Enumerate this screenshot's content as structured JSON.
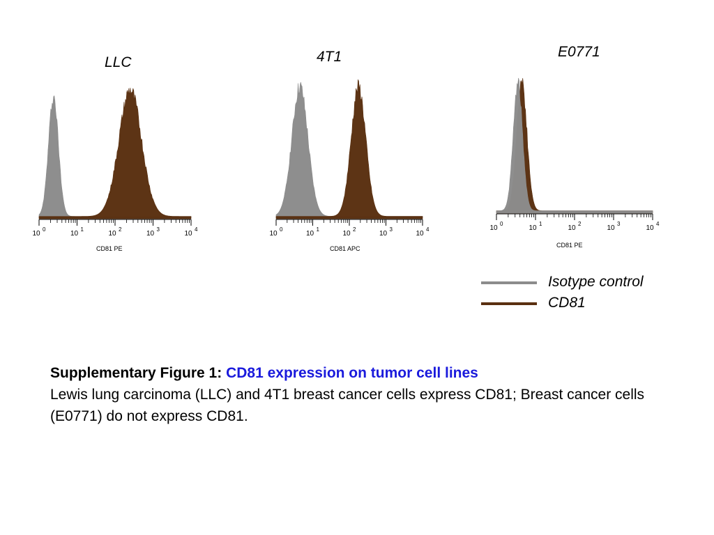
{
  "colors": {
    "isotype": "#8c8c8c",
    "cd81": "#5a3010",
    "caption_title": "#1a1adc",
    "background": "#ffffff"
  },
  "legend": {
    "items": [
      {
        "label": "Isotype control",
        "color": "#8c8c8c"
      },
      {
        "label": "CD81",
        "color": "#5a3010"
      }
    ]
  },
  "caption": {
    "heading": "Supplementary Figure 1:",
    "title": "CD81 expression on tumor cell lines",
    "body": "Lewis lung carcinoma (LLC) and 4T1 breast cancer cells express CD81; Breast cancer cells (E0771) do not express CD81."
  },
  "chart_data": [
    {
      "type": "area",
      "title": "LLC",
      "xlabel": "CD81 PE",
      "x_scale": "log",
      "xlim": [
        1,
        10000
      ],
      "tick_labels": [
        "10^0",
        "10^1",
        "10^2",
        "10^3",
        "10^4"
      ],
      "series": [
        {
          "name": "Isotype control",
          "peak_log10": 0.38,
          "spread": 0.13,
          "height": 0.95
        },
        {
          "name": "CD81",
          "peak_log10": 2.4,
          "spread": 0.3,
          "height": 1.0
        }
      ]
    },
    {
      "type": "area",
      "title": "4T1",
      "xlabel": "CD81 APC",
      "x_scale": "log",
      "xlim": [
        1,
        10000
      ],
      "tick_labels": [
        "10^0",
        "10^1",
        "10^2",
        "10^3",
        "10^4"
      ],
      "series": [
        {
          "name": "Isotype control",
          "peak_log10": 0.65,
          "spread": 0.22,
          "height": 1.0
        },
        {
          "name": "CD81",
          "peak_log10": 2.25,
          "spread": 0.2,
          "height": 1.0
        }
      ]
    },
    {
      "type": "area",
      "title": "E0771",
      "xlabel": "CD81 PE",
      "x_scale": "log",
      "xlim": [
        1,
        10000
      ],
      "tick_labels": [
        "10^0",
        "10^1",
        "10^2",
        "10^3",
        "10^4"
      ],
      "series": [
        {
          "name": "CD81",
          "peak_log10": 0.65,
          "spread": 0.13,
          "height": 1.0
        },
        {
          "name": "Isotype control",
          "peak_log10": 0.55,
          "spread": 0.12,
          "height": 0.97
        }
      ]
    }
  ]
}
